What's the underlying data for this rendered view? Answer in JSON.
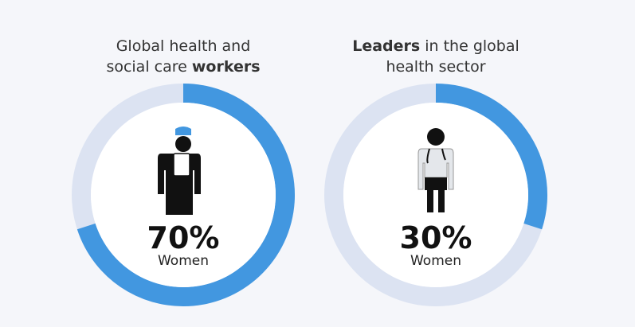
{
  "chart_data": [
    {
      "type": "donut",
      "title": [
        [
          {
            "text": "Global health and"
          }
        ],
        [
          {
            "text": "social care "
          },
          {
            "text": "workers",
            "bold": true
          }
        ]
      ],
      "values": [
        70
      ],
      "value_labels": [
        "70%"
      ],
      "label": "Women",
      "color": "#4297e0",
      "track_color": "#dce3f2"
    },
    {
      "type": "donut",
      "title": [
        [
          {
            "text": "Leaders",
            "bold": true
          },
          {
            "text": " in the global"
          }
        ],
        [
          {
            "text": "health sector"
          }
        ]
      ],
      "values": [
        30
      ],
      "value_labels": [
        "30%"
      ],
      "label": "Women",
      "color": "#4297e0",
      "track_color": "#dce3f2"
    }
  ]
}
